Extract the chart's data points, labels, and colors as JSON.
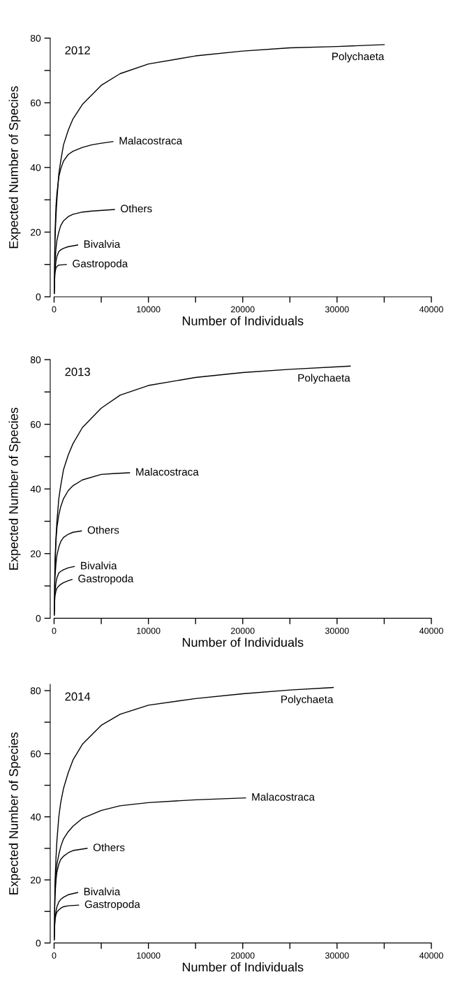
{
  "chart_data": [
    {
      "type": "line",
      "title": "2012",
      "xlabel": "Number of Individuals",
      "ylabel": "Expected Number of Species",
      "xlim": [
        0,
        40000
      ],
      "ylim": [
        0,
        80
      ],
      "xticks": [
        0,
        {
          "value": 5000,
          "label": null
        },
        10000,
        {
          "value": 15000,
          "label": null
        },
        20000,
        {
          "value": 25000,
          "label": null
        },
        30000,
        {
          "value": 35000,
          "label": null
        },
        40000
      ],
      "yticks": [
        0,
        {
          "value": 10,
          "label": null
        },
        20,
        {
          "value": 30,
          "label": null
        },
        40,
        {
          "value": 50,
          "label": null
        },
        60,
        {
          "value": 70,
          "label": null
        },
        80
      ],
      "series": [
        {
          "name": "Polychaeta",
          "color": "#000000",
          "x": [
            0,
            50,
            100,
            200,
            300,
            500,
            700,
            1000,
            1500,
            2000,
            3000,
            5000,
            7000,
            10000,
            15000,
            20000,
            25000,
            30000,
            35000
          ],
          "values": [
            1,
            12,
            18,
            25,
            30,
            38,
            42,
            47,
            51.5,
            55,
            59.5,
            65.4,
            69,
            72,
            74.5,
            76,
            77,
            77.4,
            78
          ]
        },
        {
          "name": "Malacostraca",
          "color": "#000000",
          "x": [
            0,
            50,
            100,
            200,
            300,
            500,
            700,
            1000,
            1500,
            2000,
            3000,
            4000,
            5000,
            6250
          ],
          "values": [
            1,
            12,
            20,
            28,
            32,
            37,
            39.5,
            42,
            44,
            45,
            46.2,
            47,
            47.5,
            48
          ]
        },
        {
          "name": "Others",
          "color": "#000000",
          "x": [
            0,
            50,
            100,
            200,
            300,
            500,
            700,
            1000,
            1500,
            2000,
            3000,
            4000,
            6400
          ],
          "values": [
            1,
            8,
            11,
            15,
            17.5,
            20,
            22,
            23.5,
            24.8,
            25.5,
            26.2,
            26.5,
            27
          ]
        },
        {
          "name": "Bivalvia",
          "color": "#000000",
          "x": [
            0,
            50,
            100,
            200,
            300,
            500,
            700,
            1000,
            1500,
            2500
          ],
          "values": [
            1,
            6,
            8.5,
            11,
            12.5,
            14,
            14.5,
            15,
            15.5,
            16
          ]
        },
        {
          "name": "Gastropoda",
          "color": "#000000",
          "x": [
            0,
            50,
            100,
            200,
            300,
            500,
            1300
          ],
          "values": [
            1,
            5,
            7.5,
            9,
            9.4,
            9.8,
            10
          ]
        }
      ]
    },
    {
      "type": "line",
      "title": "2013",
      "xlabel": "Number of Individuals",
      "ylabel": "Expected Number of Species",
      "xlim": [
        0,
        40000
      ],
      "ylim": [
        0,
        80
      ],
      "xticks": [
        0,
        {
          "value": 5000,
          "label": null
        },
        10000,
        {
          "value": 15000,
          "label": null
        },
        20000,
        {
          "value": 25000,
          "label": null
        },
        30000,
        {
          "value": 35000,
          "label": null
        },
        40000
      ],
      "yticks": [
        0,
        {
          "value": 10,
          "label": null
        },
        20,
        {
          "value": 30,
          "label": null
        },
        40,
        {
          "value": 50,
          "label": null
        },
        60,
        {
          "value": 70,
          "label": null
        },
        80
      ],
      "series": [
        {
          "name": "Polychaeta",
          "color": "#000000",
          "x": [
            0,
            50,
            100,
            200,
            300,
            500,
            700,
            1000,
            1500,
            2000,
            3000,
            5000,
            7000,
            10000,
            15000,
            20000,
            25000,
            31400
          ],
          "values": [
            1,
            12,
            18,
            25,
            30,
            37,
            41,
            46,
            50.5,
            54,
            59,
            65,
            69,
            72,
            74.5,
            76,
            77,
            78
          ]
        },
        {
          "name": "Malacostraca",
          "color": "#000000",
          "x": [
            0,
            50,
            100,
            200,
            300,
            500,
            700,
            1000,
            1500,
            2000,
            3000,
            5000,
            6500,
            8000
          ],
          "values": [
            1,
            10,
            16,
            24,
            28,
            32,
            34.5,
            37,
            39.5,
            41,
            42.8,
            44.5,
            44.8,
            45
          ]
        },
        {
          "name": "Others",
          "color": "#000000",
          "x": [
            0,
            50,
            100,
            200,
            300,
            500,
            700,
            1000,
            1500,
            2000,
            2900
          ],
          "values": [
            1,
            9,
            13,
            17,
            19.5,
            22,
            23.7,
            25,
            26,
            26.6,
            27
          ]
        },
        {
          "name": "Bivalvia",
          "color": "#000000",
          "x": [
            0,
            50,
            100,
            200,
            300,
            500,
            700,
            1000,
            1500,
            2150
          ],
          "values": [
            1,
            6,
            8.5,
            11,
            12.5,
            14,
            14.5,
            15,
            15.6,
            16
          ]
        },
        {
          "name": "Gastropoda",
          "color": "#000000",
          "x": [
            0,
            50,
            100,
            200,
            300,
            500,
            700,
            1000,
            1500,
            1900
          ],
          "values": [
            1,
            5,
            7,
            8.5,
            9.3,
            10,
            10.5,
            11,
            11.6,
            12
          ]
        }
      ]
    },
    {
      "type": "line",
      "title": "2014",
      "xlabel": "Number of Individuals",
      "ylabel": "Expected Number of Species",
      "xlim": [
        0,
        40000
      ],
      "ylim": [
        0,
        82
      ],
      "xticks": [
        0,
        {
          "value": 5000,
          "label": null
        },
        10000,
        {
          "value": 15000,
          "label": null
        },
        20000,
        {
          "value": 25000,
          "label": null
        },
        30000,
        {
          "value": 35000,
          "label": null
        },
        40000
      ],
      "yticks": [
        0,
        {
          "value": 10,
          "label": null
        },
        20,
        {
          "value": 30,
          "label": null
        },
        40,
        {
          "value": 50,
          "label": null
        },
        60,
        {
          "value": 70,
          "label": null
        },
        80
      ],
      "series": [
        {
          "name": "Polychaeta",
          "color": "#000000",
          "x": [
            0,
            50,
            100,
            200,
            300,
            500,
            700,
            1000,
            1500,
            2000,
            3000,
            5000,
            7000,
            10000,
            15000,
            20000,
            25000,
            29600
          ],
          "values": [
            1,
            13,
            19.5,
            27,
            32.5,
            40,
            44.5,
            49,
            54,
            58,
            63,
            69,
            72.5,
            75.4,
            77.5,
            79,
            80.2,
            81
          ]
        },
        {
          "name": "Malacostraca",
          "color": "#000000",
          "x": [
            0,
            50,
            100,
            200,
            300,
            500,
            700,
            1000,
            1500,
            2000,
            3000,
            5000,
            7000,
            10000,
            15000,
            20300
          ],
          "values": [
            1,
            10,
            16,
            22,
            25,
            28,
            30.5,
            33,
            35.3,
            37,
            39.5,
            42,
            43.5,
            44.5,
            45.4,
            46
          ]
        },
        {
          "name": "Others",
          "color": "#000000",
          "x": [
            0,
            50,
            100,
            200,
            300,
            500,
            700,
            1000,
            1500,
            2000,
            3500
          ],
          "values": [
            1,
            10,
            15,
            20,
            22.5,
            25,
            26.5,
            27.5,
            28.6,
            29.3,
            30
          ]
        },
        {
          "name": "Bivalvia",
          "color": "#000000",
          "x": [
            0,
            50,
            100,
            200,
            300,
            500,
            700,
            1000,
            1500,
            2500
          ],
          "values": [
            1,
            5,
            7.5,
            10,
            11.5,
            13,
            13.8,
            14.5,
            15.3,
            16
          ]
        },
        {
          "name": "Gastropoda",
          "color": "#000000",
          "x": [
            0,
            50,
            100,
            200,
            300,
            500,
            700,
            1000,
            1500,
            2600
          ],
          "values": [
            1,
            5,
            7.5,
            9,
            9.8,
            10.5,
            11,
            11.5,
            11.8,
            12
          ]
        }
      ]
    }
  ]
}
